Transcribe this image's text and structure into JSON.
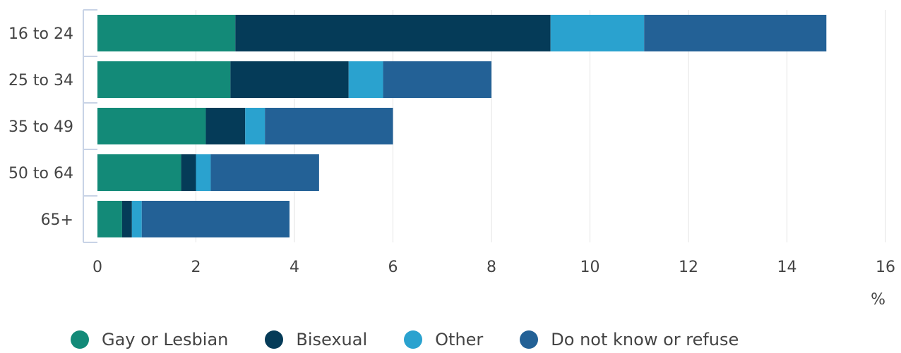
{
  "chart_data": {
    "type": "bar",
    "orientation": "horizontal",
    "stacked": true,
    "categories": [
      "16 to 24",
      "25 to 34",
      "35 to 49",
      "50 to 64",
      "65+"
    ],
    "series": [
      {
        "name": "Gay or Lesbian",
        "color": "#138a78",
        "values": [
          2.8,
          2.7,
          2.2,
          1.7,
          0.5
        ]
      },
      {
        "name": "Bisexual",
        "color": "#053b58",
        "values": [
          6.4,
          2.4,
          0.8,
          0.3,
          0.2
        ]
      },
      {
        "name": "Other",
        "color": "#2aa2cf",
        "values": [
          1.9,
          0.7,
          0.4,
          0.3,
          0.2
        ]
      },
      {
        "name": "Do not know or refuse",
        "color": "#236196",
        "values": [
          3.7,
          2.2,
          2.6,
          2.2,
          3.0
        ]
      }
    ],
    "xlim": [
      0,
      16
    ],
    "xticks": [
      0,
      2,
      4,
      6,
      8,
      10,
      12,
      14,
      16
    ],
    "xlabel": "%",
    "grid": true,
    "legend_position": "bottom"
  }
}
